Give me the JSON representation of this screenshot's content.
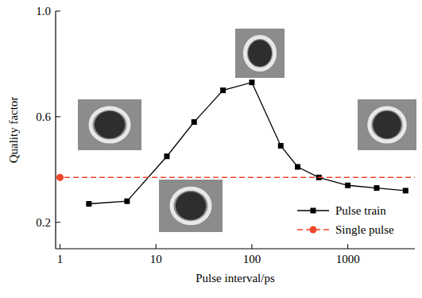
{
  "chart_data": {
    "type": "line",
    "x_label": "Pulse interval/ps",
    "y_label": "Quality factor",
    "log": "x",
    "xlim": [
      0.9,
      5000
    ],
    "xticks": [
      1,
      10,
      100,
      1000
    ],
    "ylim": [
      0.1,
      1.0
    ],
    "yticks": [
      0.2,
      0.6,
      {
        "value": 1.0,
        "label": "1.0"
      }
    ],
    "grid": false,
    "legend": "lower right",
    "series": [
      {
        "name": "Pulse train",
        "type": "line",
        "color": "#000000",
        "marker": "square",
        "line_style": "solid",
        "x": [
          2,
          5,
          13,
          25,
          50,
          100,
          200,
          300,
          500,
          1000,
          2000,
          4000
        ],
        "values": [
          0.27,
          0.28,
          0.45,
          0.58,
          0.7,
          0.73,
          0.49,
          0.41,
          0.37,
          0.34,
          0.33,
          0.32
        ]
      },
      {
        "name": "Single pulse",
        "type": "hline",
        "color": "#f0462a",
        "marker": "circle",
        "line_style": "dashed",
        "x": [
          1
        ],
        "values": [
          0.37
        ]
      }
    ]
  }
}
